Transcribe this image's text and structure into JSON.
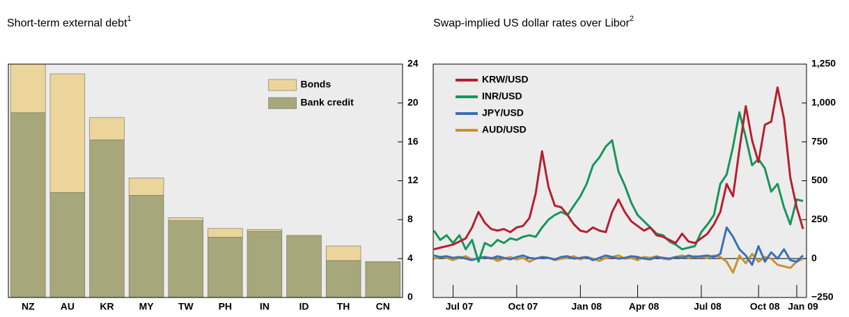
{
  "chart_data": [
    {
      "type": "stacked_bar",
      "title": "Short-term external debt",
      "title_note": "1",
      "categories": [
        "NZ",
        "AU",
        "KR",
        "MY",
        "TW",
        "PH",
        "IN",
        "ID",
        "TH",
        "CN"
      ],
      "series": [
        {
          "name": "Bank credit",
          "color": "#a6a87c",
          "values": [
            19,
            10.8,
            16.2,
            10.5,
            7.9,
            6.2,
            6.8,
            6.3,
            3.8,
            3.6
          ]
        },
        {
          "name": "Bonds",
          "color": "#ebd59b",
          "values": [
            5,
            12.2,
            2.3,
            1.8,
            0.3,
            0.9,
            0.2,
            0.1,
            1.5,
            0.1
          ]
        }
      ],
      "ylim": [
        0,
        24
      ],
      "yticks": [
        0,
        4,
        8,
        12,
        16,
        20,
        24
      ],
      "legend": "upper right"
    },
    {
      "type": "line",
      "title": "Swap-implied US dollar rates over Libor",
      "title_note": "2",
      "categories": [
        null,
        null,
        null,
        null,
        "Jul 07",
        null,
        null,
        null,
        null,
        null,
        null,
        null,
        null,
        null,
        "Oct 07",
        null,
        null,
        null,
        null,
        null,
        null,
        null,
        null,
        null,
        "Jan 08",
        null,
        null,
        null,
        null,
        null,
        null,
        null,
        null,
        "Apr 08",
        null,
        null,
        null,
        null,
        null,
        null,
        null,
        null,
        null,
        "Jul 08",
        null,
        null,
        null,
        null,
        null,
        null,
        null,
        null,
        "Oct 08",
        null,
        null,
        null,
        null,
        null,
        "Jan 09"
      ],
      "series": [
        {
          "name": "KRW/USD",
          "color": "#b5202e",
          "values": [
            60,
            70,
            80,
            90,
            110,
            130,
            200,
            300,
            230,
            190,
            180,
            190,
            170,
            200,
            210,
            260,
            420,
            690,
            460,
            340,
            330,
            280,
            220,
            180,
            170,
            200,
            180,
            170,
            300,
            380,
            300,
            240,
            210,
            180,
            200,
            150,
            140,
            120,
            100,
            160,
            110,
            100,
            130,
            160,
            220,
            300,
            480,
            400,
            700,
            980,
            760,
            620,
            860,
            880,
            1100,
            900,
            520,
            330,
            190
          ]
        },
        {
          "name": "INR/USD",
          "color": "#17955a",
          "values": [
            180,
            120,
            150,
            100,
            150,
            60,
            120,
            -20,
            100,
            80,
            120,
            100,
            130,
            120,
            140,
            150,
            140,
            200,
            250,
            280,
            300,
            280,
            340,
            400,
            480,
            600,
            650,
            720,
            760,
            560,
            470,
            360,
            280,
            240,
            200,
            160,
            150,
            110,
            90,
            60,
            70,
            80,
            170,
            220,
            280,
            480,
            540,
            720,
            940,
            780,
            600,
            640,
            580,
            430,
            480,
            330,
            220,
            380,
            370
          ]
        },
        {
          "name": "JPY/USD",
          "color": "#3a6fb7",
          "values": [
            20,
            10,
            15,
            5,
            10,
            0,
            -10,
            5,
            10,
            0,
            15,
            5,
            -5,
            10,
            20,
            5,
            0,
            10,
            5,
            -5,
            10,
            15,
            0,
            5,
            10,
            -10,
            5,
            20,
            10,
            0,
            5,
            15,
            10,
            0,
            -5,
            10,
            5,
            0,
            10,
            5,
            20,
            10,
            15,
            20,
            10,
            30,
            200,
            140,
            60,
            20,
            -40,
            80,
            -20,
            40,
            0,
            60,
            -10,
            -20,
            20
          ]
        },
        {
          "name": "AUD/USD",
          "color": "#c8922e",
          "values": [
            0,
            10,
            5,
            -10,
            5,
            15,
            -5,
            0,
            10,
            5,
            -15,
            0,
            10,
            -5,
            5,
            -20,
            0,
            10,
            5,
            -10,
            0,
            5,
            15,
            -5,
            10,
            0,
            -15,
            5,
            10,
            20,
            0,
            5,
            -10,
            10,
            5,
            15,
            0,
            -5,
            10,
            20,
            5,
            15,
            10,
            5,
            20,
            10,
            -20,
            -90,
            20,
            -30,
            30,
            -20,
            10,
            0,
            -40,
            -50,
            -60,
            -20,
            0
          ]
        }
      ],
      "ylim": [
        -250,
        1250
      ],
      "yticks": [
        {
          "value": -250,
          "label": "−250"
        },
        0,
        250,
        500,
        750,
        {
          "value": 1000,
          "label": "1,000"
        },
        {
          "value": 1250,
          "label": "1,250"
        }
      ],
      "zero_line": true,
      "legend": "upper left"
    }
  ]
}
